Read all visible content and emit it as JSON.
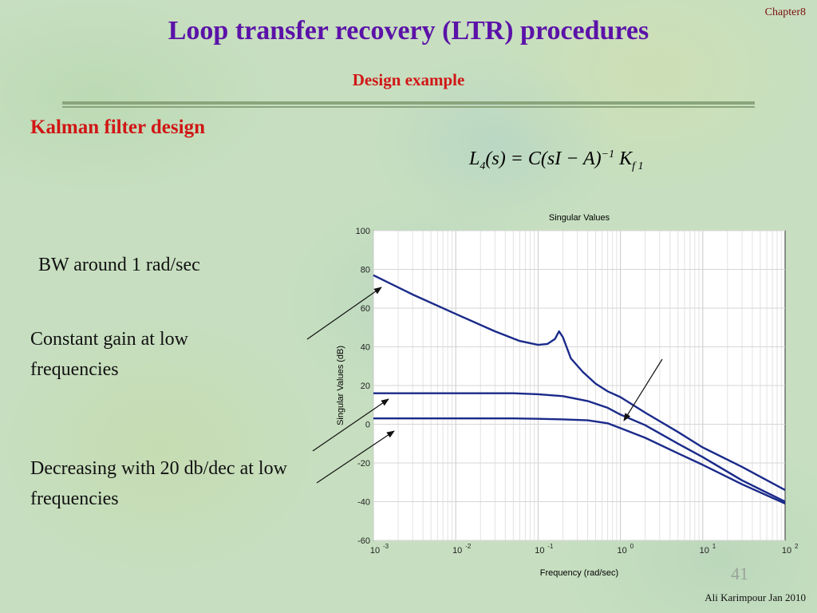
{
  "slide": {
    "chapter": "Chapter8",
    "title": "Loop transfer recovery (LTR) procedures",
    "subtitle": "Design example",
    "section": "Kalman filter design",
    "equation": {
      "lhs_symbol": "L",
      "lhs_sub": "4",
      "lhs_arg": "(s) = ",
      "rhs_main": "C(sI − A)",
      "rhs_sup": "−1",
      "rhs_k": " K",
      "rhs_k_sub": "f 1"
    },
    "notes": [
      "BW around 1 rad/sec",
      "Constant gain at low frequencies",
      "Decreasing with 20 db/dec at low frequencies"
    ],
    "page_number": "41",
    "footer": "Ali Karimpour  Jan 2010",
    "colors": {
      "title": "#5b12a8",
      "accent_red": "#d11616",
      "curve": "#1a2a8a"
    }
  },
  "chart_data": {
    "type": "line",
    "title": "Singular Values",
    "xlabel": "Frequency (rad/sec)",
    "ylabel": "Singular Values (dB)",
    "xscale": "log",
    "xlim": [
      0.001,
      100
    ],
    "ylim": [
      -60,
      100
    ],
    "xticks": [
      {
        "base": "10",
        "exp": "-3"
      },
      {
        "base": "10",
        "exp": "-2"
      },
      {
        "base": "10",
        "exp": "-1"
      },
      {
        "base": "10",
        "exp": "0"
      },
      {
        "base": "10",
        "exp": "1"
      },
      {
        "base": "10",
        "exp": "2"
      }
    ],
    "yticks": [
      "100",
      "80",
      "60",
      "40",
      "20",
      "0",
      "-20",
      "-40",
      "-60"
    ],
    "grid": true,
    "series": [
      {
        "x": [
          0.001,
          0.003,
          0.01,
          0.03,
          0.06,
          0.1,
          0.13,
          0.16,
          0.18,
          0.2,
          0.25,
          0.35,
          0.5,
          0.7,
          1,
          2,
          5,
          10,
          30,
          100
        ],
        "y": [
          77,
          67,
          57,
          48,
          43,
          41,
          41.5,
          44,
          48,
          45,
          34,
          27,
          21,
          17,
          14,
          6,
          -4,
          -12,
          -22,
          -34
        ]
      },
      {
        "x": [
          0.001,
          0.01,
          0.05,
          0.1,
          0.2,
          0.4,
          0.7,
          1,
          2,
          5,
          10,
          30,
          100
        ],
        "y": [
          16,
          16,
          16,
          15.5,
          14.5,
          12,
          8.5,
          5,
          -0.5,
          -10,
          -17,
          -29,
          -40
        ]
      },
      {
        "x": [
          0.001,
          0.01,
          0.05,
          0.1,
          0.2,
          0.4,
          0.7,
          1,
          2,
          5,
          10,
          30,
          100
        ],
        "y": [
          3,
          3,
          3,
          2.8,
          2.5,
          2,
          0.5,
          -2,
          -7,
          -15,
          -21,
          -31,
          -41
        ]
      }
    ]
  }
}
